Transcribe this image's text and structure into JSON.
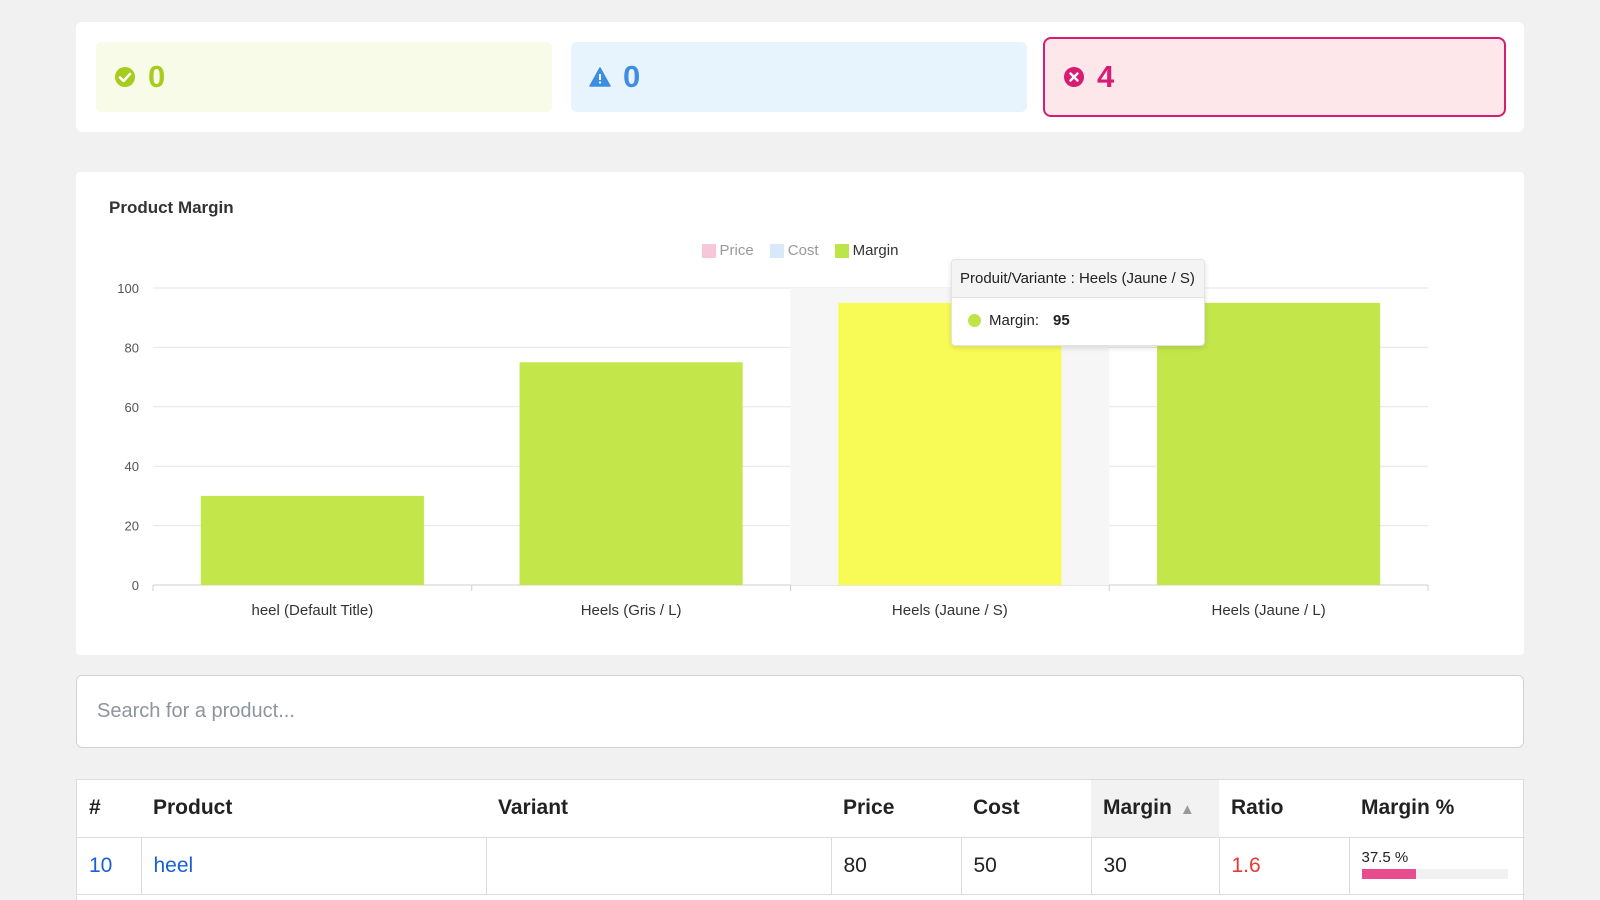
{
  "status": {
    "success": {
      "count": "0",
      "color": "#a6cc1d"
    },
    "warning": {
      "count": "0",
      "color": "#3d8ee3"
    },
    "error": {
      "count": "4",
      "color": "#d81b73"
    }
  },
  "chart": {
    "title": "Product Margin",
    "legend": [
      {
        "label": "Price",
        "color": "#f8c6d9"
      },
      {
        "label": "Cost",
        "color": "#d7e9fb"
      },
      {
        "label": "Margin",
        "color": "#bfe449"
      }
    ],
    "tooltip": {
      "header": "Produit/Variante : Heels (Jaune / S)",
      "label": "Margin:",
      "value": "95"
    }
  },
  "chart_data": {
    "type": "bar",
    "title": "Product Margin",
    "categories": [
      "heel (Default Title)",
      "Heels (Gris / L)",
      "Heels (Jaune / S)",
      "Heels (Jaune / L)"
    ],
    "series": [
      {
        "name": "Margin",
        "values": [
          30,
          75,
          95,
          95
        ],
        "color": "#c3e64a",
        "highlight_color": "#f8fb56",
        "highlight_index": 2
      }
    ],
    "ylim": [
      0,
      100
    ],
    "yticks": [
      0,
      20,
      40,
      60,
      80,
      100
    ],
    "legend_position": "top-center",
    "grid": true
  },
  "search": {
    "placeholder": "Search for a product..."
  },
  "table": {
    "headers": [
      "#",
      "Product",
      "Variant",
      "Price",
      "Cost",
      "Margin",
      "Ratio",
      "Margin %"
    ],
    "sorted_column": "Margin",
    "rows": [
      {
        "id": "10",
        "product": "heel",
        "variant": "",
        "price": "80",
        "cost": "50",
        "margin": "30",
        "ratio": "1.6",
        "margin_pct_text": "37.5 %",
        "margin_pct": 37.5
      }
    ]
  }
}
